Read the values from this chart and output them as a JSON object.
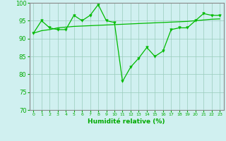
{
  "x": [
    0,
    1,
    2,
    3,
    4,
    5,
    6,
    7,
    8,
    9,
    10,
    11,
    12,
    13,
    14,
    15,
    16,
    17,
    18,
    19,
    20,
    21,
    22,
    23
  ],
  "y_main": [
    91.5,
    95.0,
    93.0,
    92.5,
    92.5,
    96.5,
    95.0,
    96.5,
    99.5,
    95.0,
    94.5,
    78.0,
    82.0,
    84.5,
    87.5,
    85.0,
    86.5,
    92.5,
    93.0,
    93.0,
    95.0,
    97.0,
    96.5,
    96.5
  ],
  "y_trend": [
    91.5,
    92.2,
    92.5,
    93.0,
    93.2,
    93.4,
    93.5,
    93.6,
    93.7,
    93.8,
    93.9,
    94.0,
    94.1,
    94.2,
    94.3,
    94.4,
    94.5,
    94.6,
    94.7,
    94.8,
    95.0,
    95.2,
    95.4,
    95.5
  ],
  "ylim": [
    70,
    100
  ],
  "yticks": [
    70,
    75,
    80,
    85,
    90,
    95,
    100
  ],
  "xlim": [
    -0.5,
    23.5
  ],
  "xlabel": "Humidité relative (%)",
  "line_color": "#00bb00",
  "bg_color": "#d0f0f0",
  "grid_color": "#99ccbb",
  "font_color": "#00aa00",
  "spine_color": "#888888"
}
